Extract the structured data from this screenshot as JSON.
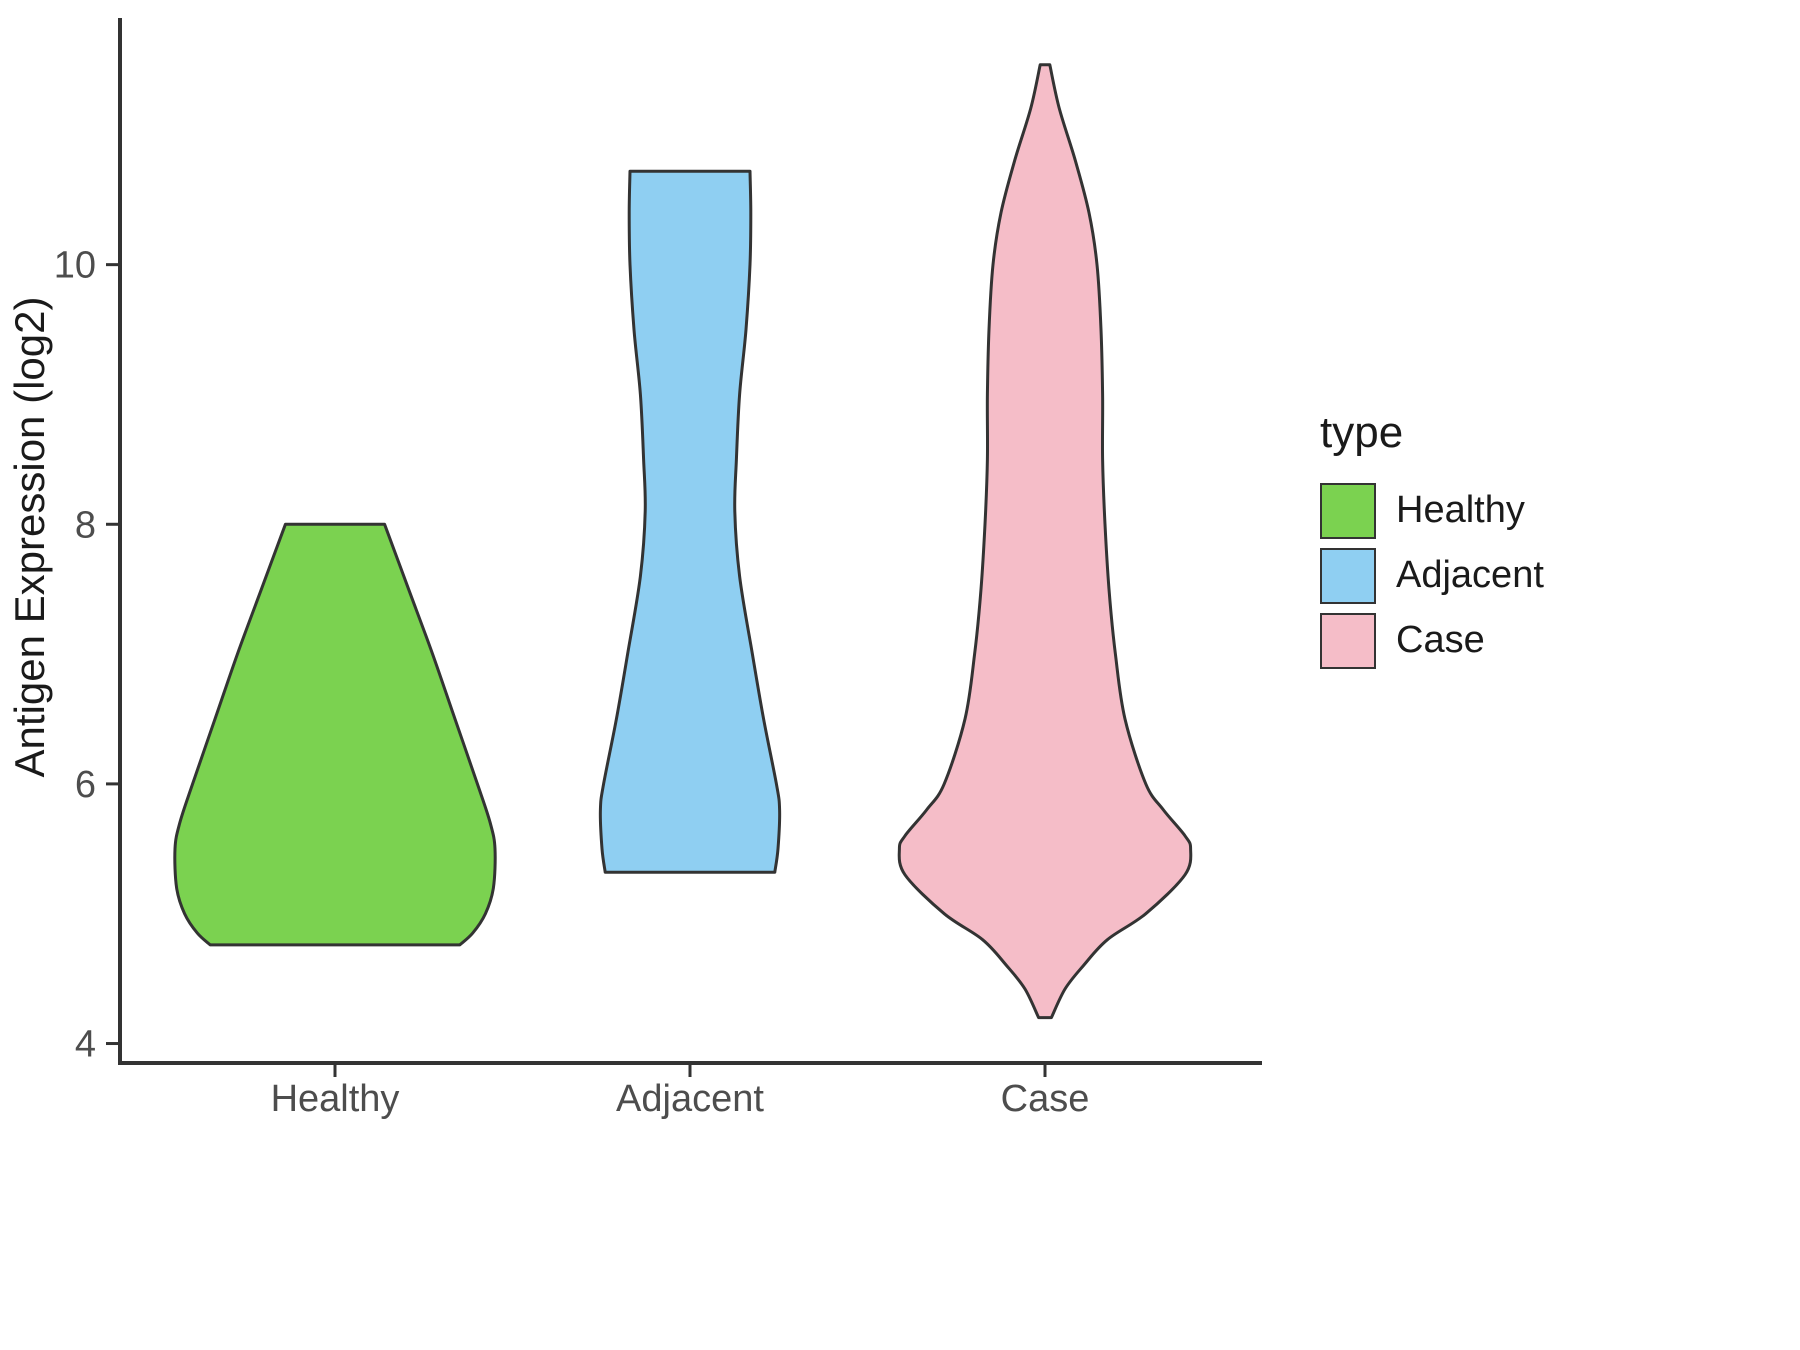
{
  "chart_data": {
    "type": "violin",
    "title": "",
    "xlabel": "",
    "ylabel": "Antigen Expression (log2)",
    "categories": [
      "Healthy",
      "Adjacent",
      "Case"
    ],
    "yticks": [
      4,
      6,
      8,
      10
    ],
    "ylim": [
      3.85,
      11.9
    ],
    "grid": false,
    "legend": {
      "title": "type",
      "position": "right",
      "entries": [
        {
          "label": "Healthy",
          "color": "#7BD250"
        },
        {
          "label": "Adjacent",
          "color": "#8FCFF2"
        },
        {
          "label": "Case",
          "color": "#F5BDC8"
        }
      ]
    },
    "series": [
      {
        "name": "Healthy",
        "color": "#7BD250",
        "cap_top": true,
        "cap_bottom": true,
        "range": [
          4.76,
          8.0
        ],
        "profile": [
          [
            8.0,
            0.31
          ],
          [
            7.5,
            0.46
          ],
          [
            7.0,
            0.61
          ],
          [
            6.5,
            0.75
          ],
          [
            6.0,
            0.89
          ],
          [
            5.7,
            0.97
          ],
          [
            5.5,
            1.0
          ],
          [
            5.2,
            0.99
          ],
          [
            5.0,
            0.94
          ],
          [
            4.85,
            0.86
          ],
          [
            4.76,
            0.78
          ]
        ]
      },
      {
        "name": "Adjacent",
        "color": "#8FCFF2",
        "cap_top": true,
        "cap_bottom": true,
        "range": [
          5.32,
          10.72
        ],
        "profile": [
          [
            10.72,
            0.375
          ],
          [
            10.4,
            0.38
          ],
          [
            10.0,
            0.375
          ],
          [
            9.5,
            0.35
          ],
          [
            9.0,
            0.31
          ],
          [
            8.5,
            0.29
          ],
          [
            8.1,
            0.28
          ],
          [
            7.6,
            0.31
          ],
          [
            7.0,
            0.39
          ],
          [
            6.5,
            0.46
          ],
          [
            6.0,
            0.54
          ],
          [
            5.8,
            0.56
          ],
          [
            5.5,
            0.55
          ],
          [
            5.32,
            0.53
          ]
        ]
      },
      {
        "name": "Case",
        "color": "#F5BDC8",
        "cap_top": false,
        "cap_bottom": false,
        "range": [
          4.2,
          11.54
        ],
        "profile": [
          [
            11.54,
            0.03
          ],
          [
            11.2,
            0.09
          ],
          [
            10.8,
            0.19
          ],
          [
            10.4,
            0.275
          ],
          [
            10.0,
            0.325
          ],
          [
            9.5,
            0.35
          ],
          [
            9.0,
            0.36
          ],
          [
            8.5,
            0.36
          ],
          [
            8.0,
            0.375
          ],
          [
            7.5,
            0.4
          ],
          [
            7.0,
            0.44
          ],
          [
            6.5,
            0.5
          ],
          [
            6.0,
            0.63
          ],
          [
            5.8,
            0.74
          ],
          [
            5.6,
            0.875
          ],
          [
            5.5,
            0.91
          ],
          [
            5.3,
            0.875
          ],
          [
            5.0,
            0.63
          ],
          [
            4.8,
            0.39
          ],
          [
            4.6,
            0.24
          ],
          [
            4.42,
            0.125
          ],
          [
            4.2,
            0.04
          ]
        ]
      }
    ],
    "style": {
      "stroke": "#333333",
      "axis_color": "#333333",
      "tick_label_color": "#4D4D4D",
      "text_color": "#1A1A1A"
    }
  }
}
